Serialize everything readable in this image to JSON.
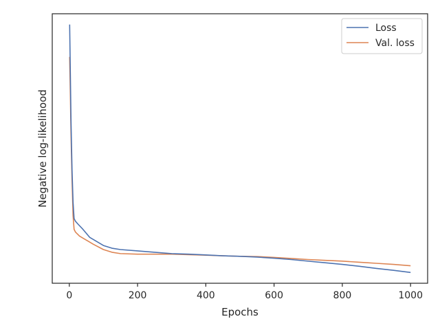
{
  "chart_data": {
    "type": "line",
    "title": "",
    "xlabel": "Epochs",
    "ylabel": "Negative log-likelihood",
    "xlim": [
      -50,
      1050
    ],
    "ylim": [
      0,
      100
    ],
    "xticks": [
      0,
      200,
      400,
      600,
      800,
      1000
    ],
    "xtick_labels": [
      "0",
      "200",
      "400",
      "600",
      "800",
      "1000"
    ],
    "yticks_shown": false,
    "grid": false,
    "legend_position": "top-right",
    "series": [
      {
        "name": "Loss",
        "color": "#4c72b0",
        "points": [
          [
            1,
            96
          ],
          [
            3,
            78
          ],
          [
            5,
            60
          ],
          [
            8,
            42
          ],
          [
            11,
            30
          ],
          [
            14,
            24
          ],
          [
            18,
            23
          ],
          [
            25,
            22
          ],
          [
            40,
            20
          ],
          [
            60,
            17
          ],
          [
            80,
            15.5
          ],
          [
            100,
            14
          ],
          [
            125,
            13
          ],
          [
            150,
            12.5
          ],
          [
            200,
            12
          ],
          [
            250,
            11.5
          ],
          [
            300,
            11
          ],
          [
            350,
            10.8
          ],
          [
            400,
            10.5
          ],
          [
            450,
            10.2
          ],
          [
            500,
            10
          ],
          [
            550,
            9.7
          ],
          [
            600,
            9.3
          ],
          [
            650,
            8.8
          ],
          [
            700,
            8.2
          ],
          [
            750,
            7.6
          ],
          [
            800,
            7
          ],
          [
            850,
            6.3
          ],
          [
            900,
            5.5
          ],
          [
            950,
            4.8
          ],
          [
            1000,
            4
          ]
        ]
      },
      {
        "name": "Val. loss",
        "color": "#dd8452",
        "points": [
          [
            1,
            84
          ],
          [
            3,
            70
          ],
          [
            5,
            55
          ],
          [
            8,
            38
          ],
          [
            11,
            25
          ],
          [
            14,
            20
          ],
          [
            18,
            19
          ],
          [
            30,
            17.5
          ],
          [
            50,
            16
          ],
          [
            70,
            14.5
          ],
          [
            100,
            12.5
          ],
          [
            125,
            11.5
          ],
          [
            150,
            11
          ],
          [
            200,
            10.8
          ],
          [
            250,
            10.8
          ],
          [
            300,
            10.8
          ],
          [
            350,
            10.6
          ],
          [
            400,
            10.4
          ],
          [
            450,
            10.2
          ],
          [
            500,
            10
          ],
          [
            550,
            9.9
          ],
          [
            600,
            9.6
          ],
          [
            650,
            9.2
          ],
          [
            700,
            8.8
          ],
          [
            750,
            8.5
          ],
          [
            800,
            8.2
          ],
          [
            850,
            7.8
          ],
          [
            900,
            7.4
          ],
          [
            950,
            7
          ],
          [
            1000,
            6.5
          ]
        ]
      }
    ]
  }
}
